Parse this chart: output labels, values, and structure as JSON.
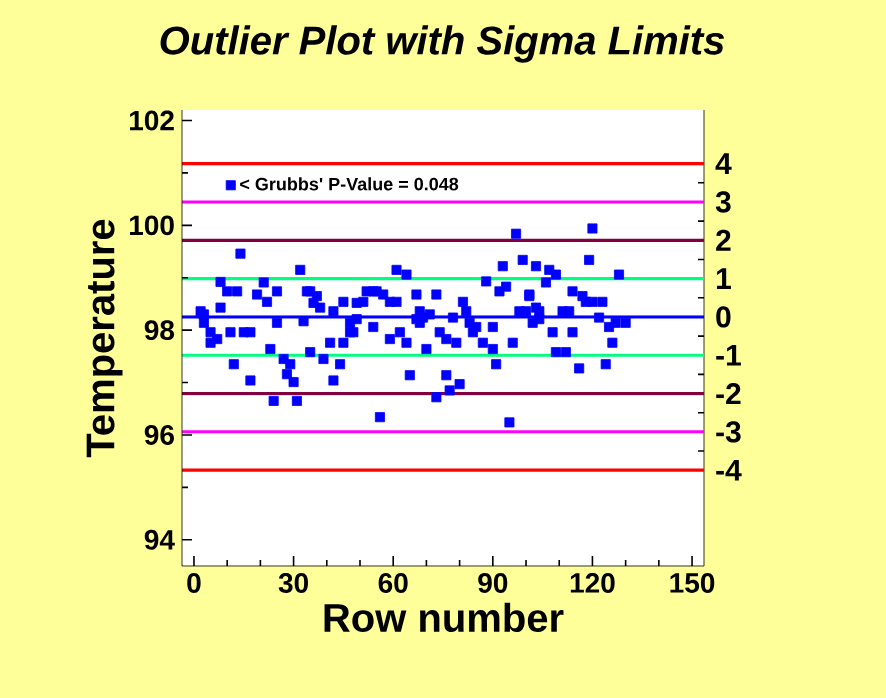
{
  "chart_data": {
    "type": "scatter",
    "title": "Outlier Plot with Sigma Limits",
    "xlabel": "Row number",
    "ylabel": "Temperature",
    "xlim": [
      -3.6,
      153.6
    ],
    "xticks": [
      0,
      30,
      60,
      90,
      120,
      150
    ],
    "ylim": [
      93.5,
      102.2
    ],
    "yticks": [
      94,
      96,
      98,
      100,
      102
    ],
    "y2lim": [
      -6.5,
      5.4
    ],
    "y2ticks": [
      -4,
      -3,
      -2,
      -1,
      0,
      1,
      2,
      3,
      4
    ],
    "marker": "square",
    "legend": "top left",
    "grid": false,
    "series": [
      {
        "name": "< Grubbs' P-Value = 0.048",
        "color": "#0000ff",
        "x": [
          2,
          3,
          3,
          5,
          5,
          7,
          8,
          8,
          10,
          11,
          12,
          13,
          14,
          15,
          17,
          17,
          19,
          21,
          22,
          23,
          24,
          25,
          25,
          27,
          28,
          29,
          30,
          31,
          32,
          33,
          34,
          35,
          35,
          36,
          37,
          38,
          39,
          41,
          42,
          42,
          44,
          45,
          45,
          47,
          47,
          49,
          48,
          49,
          51,
          52,
          54,
          54,
          55,
          56,
          57,
          59,
          59,
          61,
          61,
          62,
          64,
          64,
          65,
          67,
          67,
          68,
          68,
          69,
          70,
          71,
          73,
          73,
          74,
          76,
          76,
          77,
          78,
          79,
          80,
          81,
          82,
          83,
          84,
          85,
          87,
          88,
          90,
          90,
          91,
          92,
          93,
          94,
          95,
          96,
          97,
          98,
          99,
          100,
          101,
          102,
          103,
          101,
          103,
          104,
          104,
          106,
          107,
          108,
          109,
          109,
          111,
          112,
          113,
          114,
          114,
          116,
          117,
          118,
          119,
          120,
          120,
          122,
          123,
          124,
          125,
          126,
          127,
          128,
          130
        ],
        "values": [
          98.36,
          98.3,
          98.14,
          97.76,
          97.96,
          97.83,
          98.92,
          98.43,
          98.74,
          97.96,
          97.35,
          98.74,
          99.46,
          97.96,
          97.96,
          97.04,
          98.68,
          98.91,
          98.54,
          97.64,
          96.65,
          98.74,
          98.14,
          97.45,
          97.16,
          97.35,
          97.01,
          96.65,
          99.15,
          98.17,
          98.74,
          97.58,
          98.74,
          98.52,
          98.65,
          98.43,
          97.45,
          97.76,
          97.04,
          98.36,
          97.35,
          98.54,
          97.76,
          98.14,
          97.96,
          98.52,
          97.96,
          98.21,
          98.54,
          98.74,
          98.74,
          98.06,
          98.74,
          96.34,
          98.68,
          97.83,
          98.54,
          99.15,
          98.54,
          97.96,
          99.06,
          97.76,
          97.14,
          98.21,
          98.68,
          98.36,
          98.14,
          98.24,
          97.64,
          98.3,
          98.68,
          96.72,
          97.96,
          97.14,
          97.83,
          96.85,
          98.24,
          97.76,
          96.97,
          98.54,
          98.36,
          98.14,
          97.96,
          98.06,
          97.76,
          98.93,
          98.06,
          97.64,
          97.35,
          98.74,
          99.22,
          98.83,
          96.24,
          97.76,
          99.84,
          98.36,
          99.34,
          98.36,
          98.68,
          98.14,
          98.43,
          98.65,
          99.22,
          98.36,
          98.21,
          98.91,
          99.15,
          97.96,
          99.06,
          97.58,
          98.36,
          97.58,
          98.36,
          97.96,
          98.74,
          97.27,
          98.65,
          98.54,
          99.34,
          99.94,
          98.54,
          98.24,
          98.54,
          97.35,
          98.06,
          97.76,
          98.14,
          99.06,
          98.14
        ]
      }
    ],
    "ref_lines": [
      {
        "axis": "y2",
        "value": 4,
        "color": "#ff0000"
      },
      {
        "axis": "y2",
        "value": 3,
        "color": "#ff00ff"
      },
      {
        "axis": "y2",
        "value": 2,
        "color": "#800040"
      },
      {
        "axis": "y2",
        "value": 1,
        "color": "#00ff80"
      },
      {
        "axis": "y2",
        "value": 0,
        "color": "#0000ff"
      },
      {
        "axis": "y2",
        "value": -1,
        "color": "#00ff80"
      },
      {
        "axis": "y2",
        "value": -2,
        "color": "#800040"
      },
      {
        "axis": "y2",
        "value": -3,
        "color": "#ff00ff"
      },
      {
        "axis": "y2",
        "value": -4,
        "color": "#ff0000"
      }
    ]
  }
}
